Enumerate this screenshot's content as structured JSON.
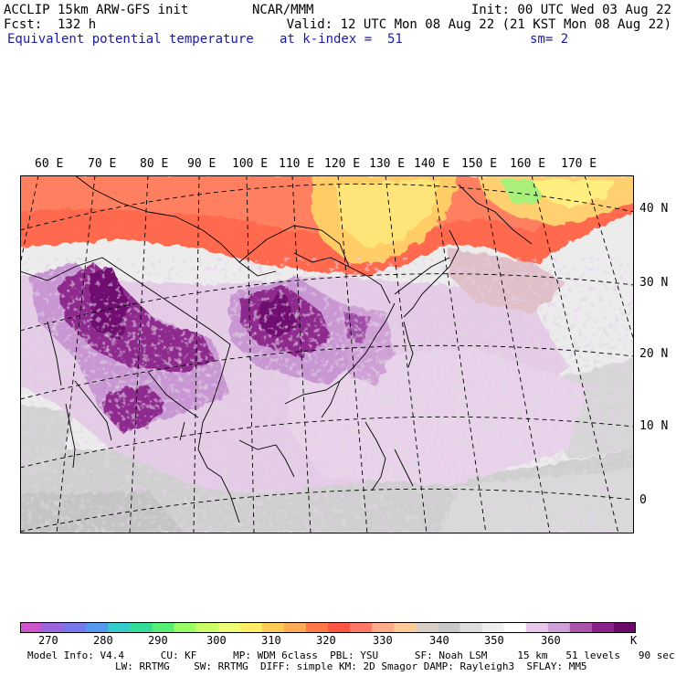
{
  "header": {
    "model": "ACCLIP 15km ARW-GFS init",
    "fcst": "Fcst:  132 h",
    "field": "Equivalent potential temperature",
    "center": "NCAR/MMM",
    "init": "Init: 00 UTC Wed 03 Aug 22",
    "valid": "Valid: 12 UTC Mon 08 Aug 22 (21 KST Mon 08 Aug 22)",
    "level": "at k-index =  51",
    "smooth": "sm= 2"
  },
  "map": {
    "lon_labels": [
      "60 E",
      "70 E",
      "80 E",
      "90 E",
      "100 E",
      "110 E",
      "120 E",
      "130 E",
      "140 E",
      "150 E",
      "160 E",
      "170 E"
    ],
    "lat_labels": [
      "40 N",
      "30 N",
      "20 N",
      "10 N",
      "0"
    ]
  },
  "colorbar": {
    "unit": "K",
    "labels": [
      "270",
      "280",
      "290",
      "300",
      "310",
      "320",
      "330",
      "340",
      "350",
      "360"
    ],
    "colors": [
      "#cc55cc",
      "#9966dd",
      "#7777ee",
      "#5599ee",
      "#33cccc",
      "#33dd99",
      "#55ee77",
      "#99ff66",
      "#ccff66",
      "#eeff77",
      "#ffee66",
      "#ffcc55",
      "#ffaa55",
      "#ff7744",
      "#ff5544",
      "#ff7766",
      "#ffaa88",
      "#ffcc99",
      "#d8d0c8",
      "#c8c8c8",
      "#dddddd",
      "#eeeeee",
      "#ffffff",
      "#e8c8e8",
      "#d0a0d8",
      "#aa55aa",
      "#8a228a",
      "#6a0a6a"
    ]
  },
  "info": {
    "line1": "Model Info: V4.4      CU: KF      MP: WDM 6class  PBL: YSU      SF: Noah LSM     15 km   51 levels   90 sec",
    "line2": "LW: RRTMG    SW: RRTMG  DIFF: simple KM: 2D Smagor DAMP: Rayleigh3  SFLAY: MM5"
  }
}
